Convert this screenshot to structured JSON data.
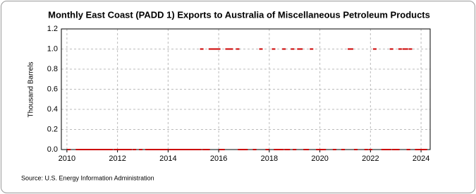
{
  "chart_data": {
    "type": "scatter",
    "title": "Monthly East Coast (PADD 1) Exports to Australia of Miscellaneous Petroleum Products",
    "y_label": "Thousand Barrels",
    "source": "Source: U.S. Energy Information Administration",
    "color": "#cc0000",
    "grid": true,
    "xlim": [
      2009.78,
      2024.36
    ],
    "xticks": [
      2010,
      2012,
      2014,
      2016,
      2018,
      2020,
      2022,
      2024
    ],
    "ylim": [
      0,
      1.2
    ],
    "yticks": [
      {
        "value": 0,
        "label": "0.0"
      },
      {
        "value": 0.2,
        "label": "0.2"
      },
      {
        "value": 0.4,
        "label": "0.4"
      },
      {
        "value": 0.6,
        "label": "0.6"
      },
      {
        "value": 0.8,
        "label": "0.8"
      },
      {
        "value": 1,
        "label": "1.0"
      },
      {
        "value": 1.2,
        "label": "1.2"
      }
    ],
    "x": [
      2010.08,
      2010.42,
      2010.5,
      2010.58,
      2010.67,
      2010.75,
      2010.83,
      2010.92,
      2011,
      2011.08,
      2011.17,
      2011.25,
      2011.33,
      2011.42,
      2011.5,
      2011.58,
      2011.67,
      2011.75,
      2011.92,
      2012,
      2012.08,
      2012.17,
      2012.25,
      2012.33,
      2012.42,
      2012.5,
      2012.67,
      2012.92,
      2013.17,
      2013.25,
      2013.33,
      2013.42,
      2013.5,
      2013.58,
      2013.67,
      2013.75,
      2013.83,
      2013.92,
      2014.08,
      2014.17,
      2014.25,
      2014.33,
      2014.42,
      2014.5,
      2014.58,
      2014.67,
      2014.75,
      2014.83,
      2014.92,
      2015,
      2015.08,
      2015.17,
      2015.25,
      2015.42,
      2015.5,
      2015.58,
      2016.08,
      2016.17,
      2016.83,
      2016.92,
      2017,
      2017.08,
      2017.42,
      2017.92,
      2018.25,
      2018.33,
      2018.42,
      2018.5,
      2018.67,
      2018.75,
      2019,
      2019.42,
      2019.5,
      2019.92,
      2020,
      2020.08,
      2020.17,
      2020.58,
      2020.92,
      2021.42,
      2021.83,
      2022,
      2022.5,
      2022.58,
      2022.67,
      2022.75,
      2022.92,
      2023,
      2023.08,
      2023.5,
      2023.83,
      2023.92,
      2024,
      2024.08,
      2024.17,
      2015.33,
      2015.67,
      2015.75,
      2015.83,
      2015.92,
      2016,
      2016.33,
      2016.42,
      2016.5,
      2016.75,
      2017.67,
      2018.17,
      2018.58,
      2018.92,
      2019.17,
      2019.25,
      2019.67,
      2021.17,
      2021.25,
      2022.17,
      2022.83,
      2023.17,
      2023.33,
      2023.42,
      2023.58
    ],
    "values": [
      0,
      0,
      0,
      0,
      0,
      0,
      0,
      0,
      0,
      0,
      0,
      0,
      0,
      0,
      0,
      0,
      0,
      0,
      0,
      0,
      0,
      0,
      0,
      0,
      0,
      0,
      0,
      0,
      0,
      0,
      0,
      0,
      0,
      0,
      0,
      0,
      0,
      0,
      0,
      0,
      0,
      0,
      0,
      0,
      0,
      0,
      0,
      0,
      0,
      0,
      0,
      0,
      0,
      0,
      0,
      0,
      0,
      0,
      0,
      0,
      0,
      0,
      0,
      0,
      0,
      0,
      0,
      0,
      0,
      0,
      0,
      0,
      0,
      0,
      0,
      0,
      0,
      0,
      0,
      0,
      0,
      0,
      0,
      0,
      0,
      0,
      0,
      0,
      0,
      0,
      0,
      0,
      0,
      0,
      0,
      1,
      1,
      1,
      1,
      1,
      1,
      1,
      1,
      1,
      1,
      1,
      1,
      1,
      1,
      1,
      1,
      1,
      1,
      1,
      1,
      1,
      1,
      1,
      1,
      1
    ]
  }
}
